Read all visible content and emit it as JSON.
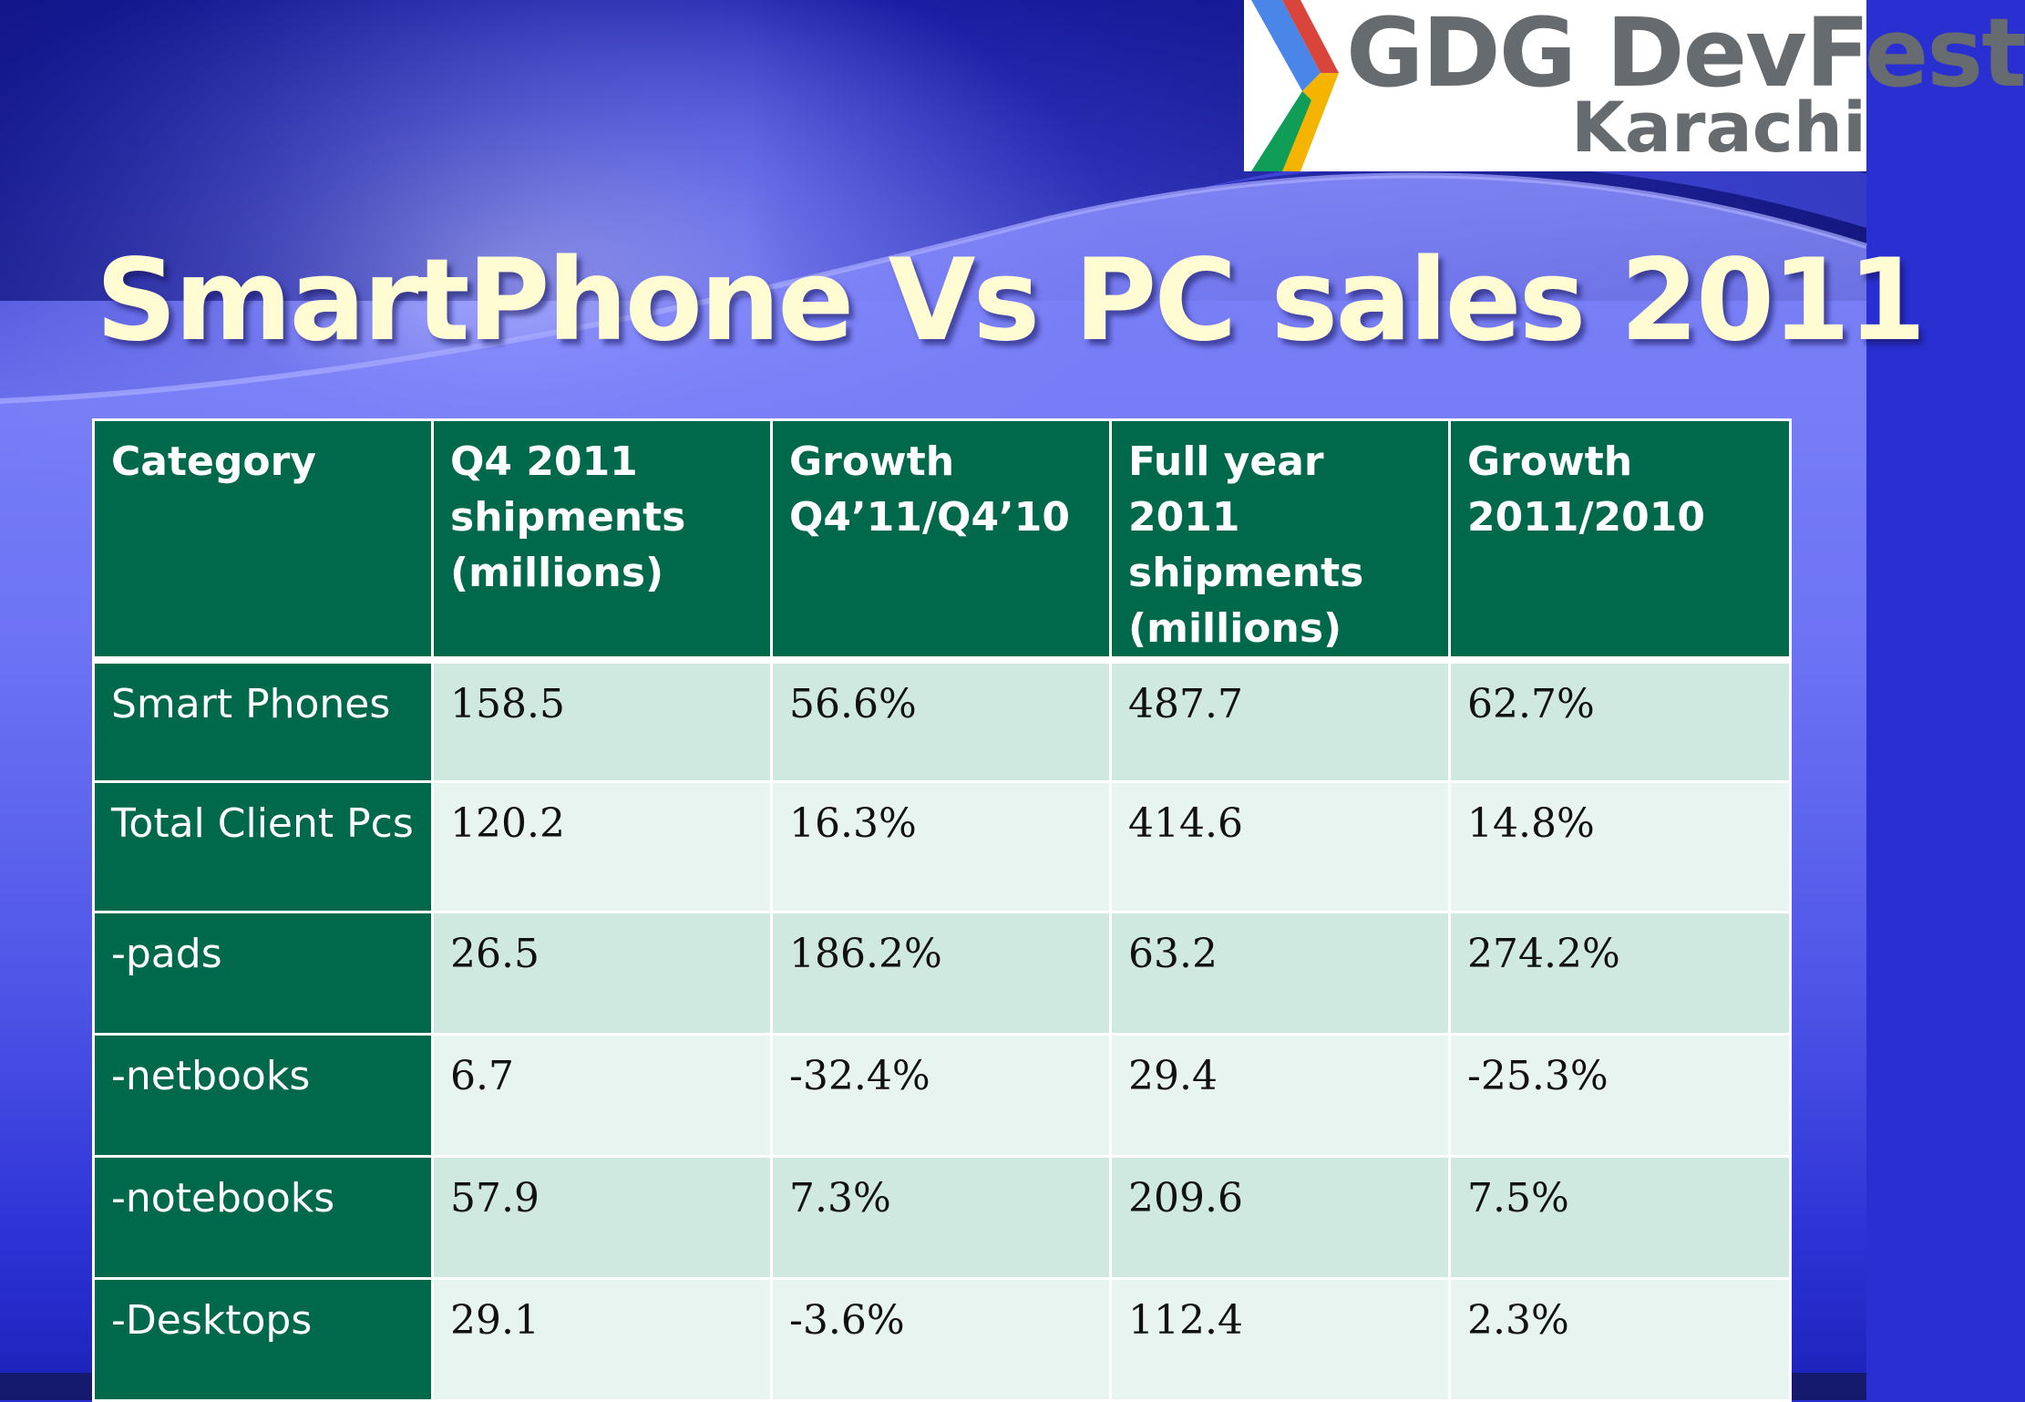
{
  "logo": {
    "line1": "GDG DevFest",
    "line2": "Karachi",
    "chevron_colors": [
      "#4a86e8",
      "#d9453b",
      "#f4b400",
      "#0f9d58"
    ]
  },
  "title": "SmartPhone Vs PC sales 2011",
  "colors": {
    "header_bg": "#00694b",
    "row_light": "#cfe9e0",
    "row_lighter": "#e7f4f0",
    "title_text": "#fffbd2"
  },
  "table": {
    "headers": [
      "Category",
      "Q4 2011 shipments (millions)",
      "Growth Q4’11/Q4’10",
      "Full year  2011 shipments (millions)",
      "Growth 2011/2010"
    ],
    "rows": [
      [
        "Smart Phones",
        "158.5",
        "56.6%",
        "487.7",
        "62.7%"
      ],
      [
        "Total Client Pcs",
        "120.2",
        "16.3%",
        "414.6",
        "14.8%"
      ],
      [
        "-pads",
        "26.5",
        "186.2%",
        "63.2",
        "274.2%"
      ],
      [
        "-netbooks",
        "6.7",
        "-32.4%",
        "29.4",
        "-25.3%"
      ],
      [
        "-notebooks",
        "57.9",
        "7.3%",
        "209.6",
        "7.5%"
      ],
      [
        "-Desktops",
        "29.1",
        "-3.6%",
        "112.4",
        "2.3%"
      ]
    ]
  }
}
